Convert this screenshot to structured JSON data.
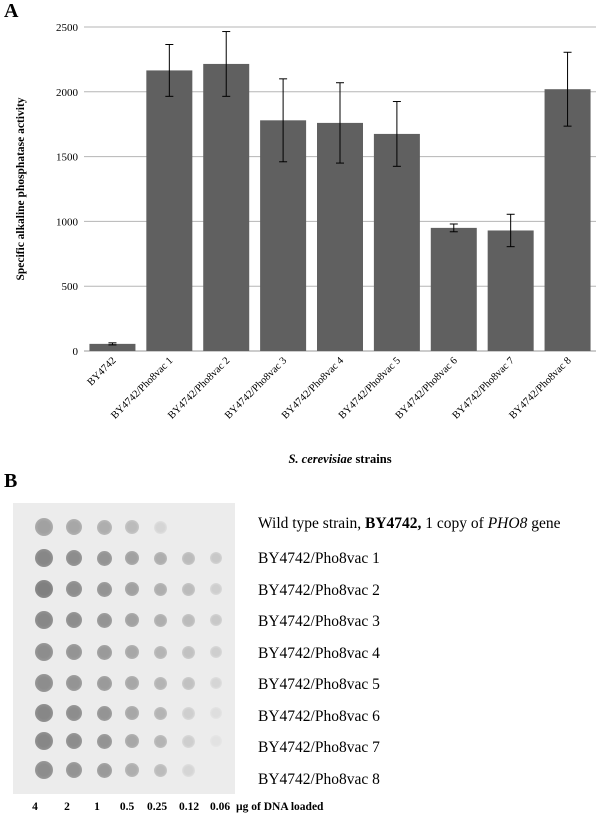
{
  "panel_a": {
    "letter": "A"
  },
  "panel_b": {
    "letter": "B"
  },
  "chart_data": {
    "type": "bar",
    "ylabel": "Specific alkaline phosphatase activity",
    "xlabel_italic": "S. cerevisiae",
    "xlabel_rest": " strains",
    "ylim": [
      0,
      2500
    ],
    "yticks": [
      "0",
      "500",
      "1000",
      "1500",
      "2000",
      "2500"
    ],
    "categories": [
      "BY4742",
      "BY4742/Pho8vac 1",
      "BY4742/Pho8vac 2",
      "BY4742/Pho8vac 3",
      "BY4742/Pho8vac 4",
      "BY4742/Pho8vac 5",
      "BY4742/Pho8vac 6",
      "BY4742/Pho8vac 7",
      "BY4742/Pho8vac 8"
    ],
    "values": [
      55,
      2165,
      2215,
      1780,
      1760,
      1675,
      950,
      930,
      2020
    ],
    "error": [
      8,
      200,
      250,
      320,
      310,
      250,
      30,
      125,
      285
    ],
    "bar_color": "#606060",
    "grid": true
  },
  "blot": {
    "wild_type": {
      "prefix": "Wild type strain, ",
      "strain": "BY4742,",
      "middle": " 1 copy of ",
      "gene": "PHO8",
      "suffix": " gene"
    },
    "rows": [
      "BY4742/Pho8vac 1",
      "BY4742/Pho8vac 2",
      "BY4742/Pho8vac 3",
      "BY4742/Pho8vac 4",
      "BY4742/Pho8vac 5",
      "BY4742/Pho8vac 6",
      "BY4742/Pho8vac 7",
      "BY4742/Pho8vac 8"
    ],
    "doses": [
      "4",
      "2",
      "1",
      "0.5",
      "0.25",
      "0.12",
      "0.06"
    ],
    "dose_unit": "µg of DNA loaded"
  }
}
